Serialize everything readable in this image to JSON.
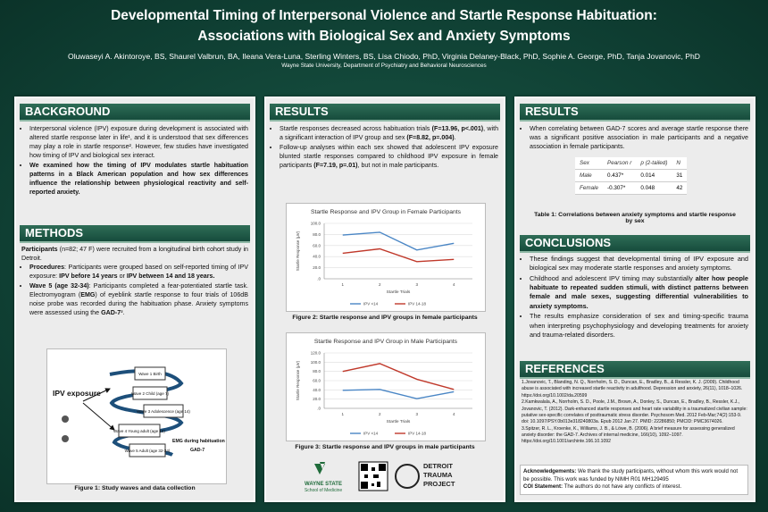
{
  "header": {
    "title_line1": "Developmental Timing of Interpersonal Violence and Startle Response Habituation:",
    "title_line2": "Associations with Biological Sex and Anxiety Symptoms",
    "authors": "Oluwaseyi A. Akintoroye, BS, Shaurel Valbrun, BA, Ileana Vera-Luna, Sterling Winters, BS, Lisa Chiodo, PhD, Virginia Delaney-Black, PhD, Sophie A. George, PhD, Tanja Jovanovic, PhD",
    "affiliation": "Wayne State University, Department of Psychiatry and Behavioral Neurosciences"
  },
  "background": {
    "heading": "BACKGROUND",
    "bullets": [
      [
        {
          "text": "Interpersonal violence (IPV) exposure during development is associated with altered startle response later in life¹, and it is understood that sex differences may play a role in startle response². However, few studies have investigated how timing of IPV and biological sex interact."
        }
      ],
      [
        {
          "text": "We examined how the timing of IPV modulates startle habituation patterns in a Black American population and how sex differences influence the relationship between physiological reactivity and self-reported anxiety.",
          "bold": true
        }
      ]
    ]
  },
  "methods": {
    "heading": "METHODS",
    "intro": [
      {
        "text": "Participants",
        "bold": true
      },
      {
        "text": " (n=82; 47 F) were recruited from a longitudinal birth cohort study in Detroit."
      }
    ],
    "bullets": [
      [
        {
          "text": "Procedures",
          "bold": true
        },
        {
          "text": ": Participants were grouped based on self-reported timing of IPV exposure: "
        },
        {
          "text": "IPV before 14 years",
          "bold": true
        },
        {
          "text": " or "
        },
        {
          "text": "IPV between 14 and 18 years.",
          "bold": true
        }
      ],
      [
        {
          "text": "Wave 5 (age 32-34)",
          "bold": true
        },
        {
          "text": ": Participants completed a fear-potentiated startle task. Electromyogram ("
        },
        {
          "text": "EMG",
          "bold": true
        },
        {
          "text": ") of eyeblink startle response to four trials of 106dB noise probe was recorded during the habituation phase. Anxiety symptoms were assessed using the "
        },
        {
          "text": "GAD-7",
          "bold": true
        },
        {
          "text": "³."
        }
      ]
    ],
    "figure": {
      "exposure_label": "IPV exposure",
      "waves": [
        "Wave 1 Birth",
        "Wave 2 Child (age 7)",
        "Wave 3 Adolescence (age 14)",
        "Wave 4 Young adult (age 18)",
        "Wave 5 Adult (age 32-34)"
      ],
      "measure_label": "EMG during habituation",
      "gad_label": "GAD-7",
      "caption": "Figure 1: Study waves and data collection"
    }
  },
  "results_main": {
    "heading": "RESULTS",
    "bullets": [
      [
        {
          "text": "Startle responses decreased across habituation trials "
        },
        {
          "text": "(F=13.96, p<.001)",
          "bold": true
        },
        {
          "text": ", with a significant interaction of IPV group and sex "
        },
        {
          "text": "(F=8.82, p=.004)",
          "bold": true
        },
        {
          "text": "."
        }
      ],
      [
        {
          "text": "Follow-up analyses within each sex showed that adolescent IPV exposure blunted startle responses compared to childhood IPV exposure in female participants "
        },
        {
          "text": "(F=7.19, p=.01)",
          "bold": true
        },
        {
          "text": ", but not in male participants."
        }
      ]
    ],
    "figures": [
      {
        "caption": "Figure 2: Startle response and IPV groups in female participants",
        "chart_data": {
          "type": "line",
          "title": "Startle Response and IPV Group in Female Participants",
          "x_label": "Startle Trials",
          "y_label": "Startle Response (μV)",
          "categories": [
            "1",
            "2",
            "3",
            "4"
          ],
          "ylim": [
            0,
            100
          ],
          "yticks": [
            {
              "value": 0,
              "label": ".0"
            },
            {
              "value": 20,
              "label": "20.0"
            },
            {
              "value": 40,
              "label": "40.0"
            },
            {
              "value": 60,
              "label": "60.0"
            },
            {
              "value": 80,
              "label": "80.0"
            },
            {
              "value": 100,
              "label": "100.0"
            }
          ],
          "grid": true,
          "series": [
            {
              "name": "IPV <14",
              "color": "#4a86c5",
              "values": [
                79,
                84,
                52,
                64
              ]
            },
            {
              "name": "IPV 14-18",
              "color": "#c0392b",
              "values": [
                46,
                54,
                31,
                35
              ]
            }
          ]
        }
      },
      {
        "caption": "Figure 3: Startle response and IPV groups in male participants",
        "chart_data": {
          "type": "line",
          "title": "Startle Response and IPV Group in Male Participants",
          "x_label": "Startle Trials",
          "y_label": "Startle Response (μV)",
          "categories": [
            "1",
            "2",
            "3",
            "4"
          ],
          "ylim": [
            0,
            120
          ],
          "yticks": [
            {
              "value": 0,
              "label": ".0"
            },
            {
              "value": 20,
              "label": "20.0"
            },
            {
              "value": 40,
              "label": "40.0"
            },
            {
              "value": 60,
              "label": "60.0"
            },
            {
              "value": 80,
              "label": "80.0"
            },
            {
              "value": 100,
              "label": "100.0"
            },
            {
              "value": 120,
              "label": "120.0"
            }
          ],
          "grid": true,
          "series": [
            {
              "name": "IPV <14",
              "color": "#4a86c5",
              "values": [
                39,
                41,
                21,
                36
              ]
            },
            {
              "name": "IPV 14-18",
              "color": "#c0392b",
              "values": [
                80,
                97,
                63,
                41
              ]
            }
          ]
        }
      }
    ],
    "logos": {
      "university": "WAYNE STATE",
      "school": "School of Medicine",
      "project": [
        "DETROIT",
        "TRAUMA",
        "PROJECT"
      ]
    }
  },
  "results_side": {
    "heading": "RESULTS",
    "bullets": [
      [
        {
          "text": "When correlating between GAD-7 scores and average startle response there was a significant positive association in male participants and a negative association in female participants."
        }
      ]
    ],
    "table": {
      "columns": [
        "Sex",
        "Pearson r",
        "p (2-tailed)",
        "N"
      ],
      "rows": [
        [
          "Male",
          "0.437*",
          "0.014",
          "31"
        ],
        [
          "Female",
          "-0.307*",
          "0.048",
          "42"
        ]
      ]
    },
    "caption": "Table 1: Correlations between anxiety symptoms and startle response by sex"
  },
  "conclusions": {
    "heading": "CONCLUSIONS",
    "bullets": [
      [
        {
          "text": "These findings suggest that developmental timing of IPV exposure and biological sex may moderate startle responses and anxiety symptoms."
        }
      ],
      [
        {
          "text": "Childhood and adolescent IPV timing may substantially "
        },
        {
          "text": "alter how people habituate to repeated sudden stimuli, with distinct patterns between female and male sexes, suggesting differential vulnerabilities to anxiety symptoms.",
          "bold": true
        }
      ],
      [
        {
          "text": "The results emphasize consideration of sex and timing-specific trauma when interpreting psychophysiology and developing treatments for anxiety and trauma-related disorders."
        }
      ]
    ]
  },
  "references": {
    "heading": "REFERENCES",
    "items": [
      "1.Jovanovic, T., Blanding, N. Q., Norrholm, S. D., Duncan, E., Bradley, B., & Ressler, K. J. (2009). Childhood abuse is associated with increased startle reactivity in adulthood. Depression and anxiety, 26(11), 1018–1026. https://doi.org/10.1002/da.20599",
      "2.Kamkwalala, A., Norrholm, S. D., Poole, J.M., Brown, A., Donley, S., Duncan, E., Bradley, B., Ressler, K.J., Jovanovic, T. (2012). Dark-enhanced startle responses and heart rate variability in a traumatized civilian sample: putative sex-specific correlates of posttraumatic stress disorder. Psychosom Med. 2012 Feb-Mar;74(2):153-9. doi: 10.1097/PSY.0b013e318240803a. Epub 2012 Jan 27. PMID: 22286850; PMCID: PMC3674026.",
      "3.Spitzer, R. L., Kroenke, K., Williams, J. B., & Löwe, B. (2006). A brief measure for assessing generalized anxiety disorder: the GAD-7. Archives of internal medicine, 166(10), 1092–1097. https://doi.org/10.1001/archinte.166.10.1092"
    ]
  },
  "acknowledgements": [
    {
      "text": "Acknowledgements:",
      "bold": true
    },
    {
      "text": " We thank the study participants, without whom this work would not be possible. This work was funded by NIMH R01 MH129495"
    }
  ],
  "coi": [
    {
      "text": "COI Statement:",
      "bold": true
    },
    {
      "text": " The authors do not have any conflicts of interest."
    }
  ]
}
